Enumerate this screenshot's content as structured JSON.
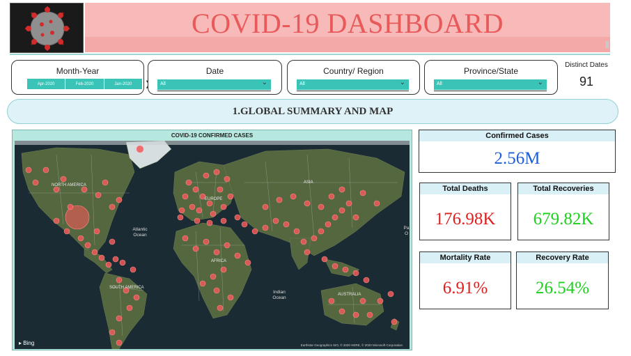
{
  "header": {
    "title": "COVID-19 DASHBOARD",
    "logo_icon": "coronavirus-icon"
  },
  "slicers": {
    "month_year": {
      "label": "Month-Year",
      "tiles": [
        "Apr-2020",
        "Feb-2020",
        "Jan-2020"
      ],
      "next_icon": "chevron-right-icon"
    },
    "date": {
      "label": "Date",
      "value": "All"
    },
    "country": {
      "label": "Country/ Region",
      "value": "All"
    },
    "province": {
      "label": "Province/State",
      "value": "All"
    },
    "distinct_dates": {
      "label": "Distinct Dates",
      "value": "91"
    }
  },
  "section": {
    "title": "1.GLOBAL SUMMARY AND MAP"
  },
  "map": {
    "title": "COVID-19 CONFIRMED CASES",
    "labels": {
      "north_america": "NORTH AMERICA",
      "europe": "EUROPE",
      "asia": "ASIA",
      "africa": "AFRICA",
      "south_america": "SOUTH AMERICA",
      "australia": "AUSTRALIA",
      "atlantic": "Atlantic Ocean",
      "indian": "Indian Ocean",
      "pacific_partial": "Pa O"
    },
    "bing_label": "Bing",
    "credits": "Earthstar Geographics SIO, © 2020 HERE, © 2020 Microsoft Corporation",
    "marker_color": "#f05a5a"
  },
  "kpis": {
    "confirmed": {
      "label": "Confirmed Cases",
      "value": "2.56M",
      "color": "#1f5fd6"
    },
    "deaths": {
      "label": "Total Deaths",
      "value": "176.98K",
      "color": "#e01f1f"
    },
    "recoveries": {
      "label": "Total Recoveries",
      "value": "679.82K",
      "color": "#1ed01e"
    },
    "mortality": {
      "label": "Mortality Rate",
      "value": "6.91%",
      "color": "#e01f1f"
    },
    "recovery_rate": {
      "label": "Recovery Rate",
      "value": "26.54%",
      "color": "#1ed01e"
    }
  },
  "colors": {
    "title_bg": "#f8b9b9",
    "title_text": "#e8595a",
    "teal": "#3ac4b8",
    "banner_bg": "#dff2f7"
  }
}
